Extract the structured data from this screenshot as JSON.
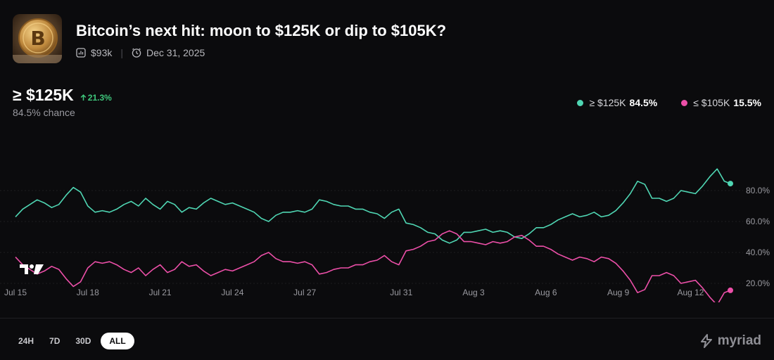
{
  "header": {
    "title": "Bitcoin’s next hit: moon to $125K or dip to $105K?",
    "volume": "$93k",
    "end_date": "Dec 31, 2025",
    "thumbnail_icon": "bitcoin-coin-icon"
  },
  "summary": {
    "outcome": "≥ $125K",
    "change": "21.3%",
    "chance": "84.5% chance"
  },
  "legend": [
    {
      "label": "≥ $125K",
      "value": "84.5%",
      "color": "#4fd6b3"
    },
    {
      "label": "≤ $105K",
      "value": "15.5%",
      "color": "#ec4fa8"
    }
  ],
  "ranges": [
    "24H",
    "7D",
    "30D",
    "ALL"
  ],
  "active_range": "ALL",
  "brand": "myriad",
  "chart_data": {
    "type": "line",
    "x_ticks": [
      "Jul 15",
      "Jul 18",
      "Jul 21",
      "Jul 24",
      "Jul 27",
      "Jul 31",
      "Aug 3",
      "Aug 6",
      "Aug 9",
      "Aug 12"
    ],
    "y_ticks": [
      "20.0%",
      "40.0%",
      "60.0%",
      "80.0%"
    ],
    "ylim": [
      0,
      100
    ],
    "xlim": [
      "Jul 15",
      "Aug 13"
    ],
    "x_day_ticks": [
      0,
      3,
      6,
      9,
      12,
      16,
      19,
      22,
      25,
      28
    ],
    "series": [
      {
        "name": "≥ $125K",
        "color": "#4fd6b3",
        "x": [
          0,
          0.3,
          0.6,
          0.9,
          1.2,
          1.5,
          1.8,
          2.1,
          2.4,
          2.7,
          3.0,
          3.3,
          3.6,
          3.9,
          4.2,
          4.5,
          4.8,
          5.1,
          5.4,
          5.7,
          6.0,
          6.3,
          6.6,
          6.9,
          7.2,
          7.5,
          7.8,
          8.1,
          8.4,
          8.7,
          9.0,
          9.3,
          9.6,
          9.9,
          10.2,
          10.5,
          10.8,
          11.1,
          11.4,
          11.7,
          12.0,
          12.3,
          12.6,
          12.9,
          13.2,
          13.5,
          13.8,
          14.1,
          14.4,
          14.7,
          15.0,
          15.3,
          15.6,
          15.9,
          16.2,
          16.5,
          16.8,
          17.1,
          17.4,
          17.7,
          18.0,
          18.3,
          18.6,
          18.9,
          19.2,
          19.5,
          19.8,
          20.1,
          20.4,
          20.7,
          21.0,
          21.3,
          21.6,
          21.9,
          22.2,
          22.5,
          22.8,
          23.1,
          23.4,
          23.7,
          24.0,
          24.3,
          24.6,
          24.9,
          25.2,
          25.5,
          25.8,
          26.1,
          26.4,
          26.7,
          27.0,
          27.3,
          27.6,
          27.9,
          28.2,
          28.5,
          28.8,
          29.1,
          29.4,
          29.65
        ],
        "values": [
          63,
          68,
          71,
          74,
          72,
          69,
          71,
          77,
          82,
          79,
          70,
          66,
          67,
          66,
          68,
          71,
          73,
          70,
          75,
          71,
          68,
          73,
          71,
          66,
          69,
          68,
          72,
          75,
          73,
          71,
          72,
          70,
          68,
          66,
          62,
          60,
          64,
          66,
          66,
          67,
          66,
          68,
          74,
          73,
          71,
          70,
          70,
          68,
          68,
          66,
          65,
          62,
          66,
          68,
          59,
          58,
          56,
          53,
          52,
          48,
          46,
          48,
          53,
          53,
          54,
          55,
          53,
          54,
          53,
          50,
          49,
          52,
          56,
          56,
          58,
          61,
          63,
          65,
          63,
          64,
          66,
          63,
          64,
          67,
          72,
          78,
          86,
          84,
          75,
          75,
          73,
          75,
          80,
          79,
          78,
          83,
          89,
          94,
          86,
          84.5
        ]
      },
      {
        "name": "≤ $105K",
        "color": "#ec4fa8",
        "x": [
          0,
          0.3,
          0.6,
          0.9,
          1.2,
          1.5,
          1.8,
          2.1,
          2.4,
          2.7,
          3.0,
          3.3,
          3.6,
          3.9,
          4.2,
          4.5,
          4.8,
          5.1,
          5.4,
          5.7,
          6.0,
          6.3,
          6.6,
          6.9,
          7.2,
          7.5,
          7.8,
          8.1,
          8.4,
          8.7,
          9.0,
          9.3,
          9.6,
          9.9,
          10.2,
          10.5,
          10.8,
          11.1,
          11.4,
          11.7,
          12.0,
          12.3,
          12.6,
          12.9,
          13.2,
          13.5,
          13.8,
          14.1,
          14.4,
          14.7,
          15.0,
          15.3,
          15.6,
          15.9,
          16.2,
          16.5,
          16.8,
          17.1,
          17.4,
          17.7,
          18.0,
          18.3,
          18.6,
          18.9,
          19.2,
          19.5,
          19.8,
          20.1,
          20.4,
          20.7,
          21.0,
          21.3,
          21.6,
          21.9,
          22.2,
          22.5,
          22.8,
          23.1,
          23.4,
          23.7,
          24.0,
          24.3,
          24.6,
          24.9,
          25.2,
          25.5,
          25.8,
          26.1,
          26.4,
          26.7,
          27.0,
          27.3,
          27.6,
          27.9,
          28.2,
          28.5,
          28.8,
          29.1,
          29.4,
          29.65
        ],
        "values": [
          37,
          32,
          29,
          26,
          28,
          31,
          29,
          23,
          18,
          21,
          30,
          34,
          33,
          34,
          32,
          29,
          27,
          30,
          25,
          29,
          32,
          27,
          29,
          34,
          31,
          32,
          28,
          25,
          27,
          29,
          28,
          30,
          32,
          34,
          38,
          40,
          36,
          34,
          34,
          33,
          34,
          32,
          26,
          27,
          29,
          30,
          30,
          32,
          32,
          34,
          35,
          38,
          34,
          32,
          41,
          42,
          44,
          47,
          48,
          52,
          54,
          52,
          47,
          47,
          46,
          45,
          47,
          46,
          47,
          50,
          51,
          48,
          44,
          44,
          42,
          39,
          37,
          35,
          37,
          36,
          34,
          37,
          36,
          33,
          28,
          22,
          14,
          16,
          25,
          25,
          27,
          25,
          20,
          21,
          22,
          17,
          11,
          6,
          14,
          15.5
        ]
      }
    ]
  }
}
